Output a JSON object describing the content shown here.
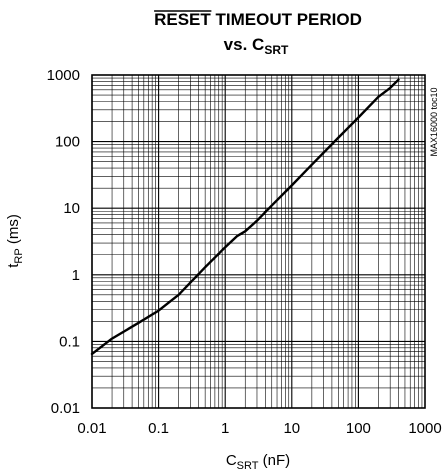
{
  "chart_data": {
    "type": "line",
    "title_line1": "RESET TIMEOUT PERIOD",
    "title_overlined_word": "RESET",
    "title_rest": " TIMEOUT PERIOD",
    "title_line2_prefix": "vs. C",
    "title_line2_sub": "SRT",
    "xlabel_main": "C",
    "xlabel_sub": "SRT",
    "xlabel_unit": " (nF)",
    "ylabel_main": "t",
    "ylabel_sub": "RP",
    "ylabel_unit": " (ms)",
    "x_scale": "log",
    "y_scale": "log",
    "xlim": [
      0.01,
      1000
    ],
    "ylim": [
      0.01,
      1000
    ],
    "x_ticks": [
      "0.01",
      "0.1",
      "1",
      "10",
      "100",
      "1000"
    ],
    "y_ticks": [
      "0.01",
      "0.1",
      "1",
      "10",
      "100",
      "1000"
    ],
    "grid": true,
    "part_label": "MAX16000 toc10",
    "series": [
      {
        "x": [
          0.01,
          0.02,
          0.05,
          0.1,
          0.2,
          0.5,
          1,
          1.5,
          2,
          3,
          5,
          10,
          20,
          50,
          100,
          200,
          300,
          400
        ],
        "y": [
          0.065,
          0.11,
          0.19,
          0.29,
          0.5,
          1.3,
          2.6,
          3.8,
          4.5,
          6.5,
          11,
          22,
          45,
          115,
          230,
          470,
          640,
          850
        ]
      }
    ]
  }
}
